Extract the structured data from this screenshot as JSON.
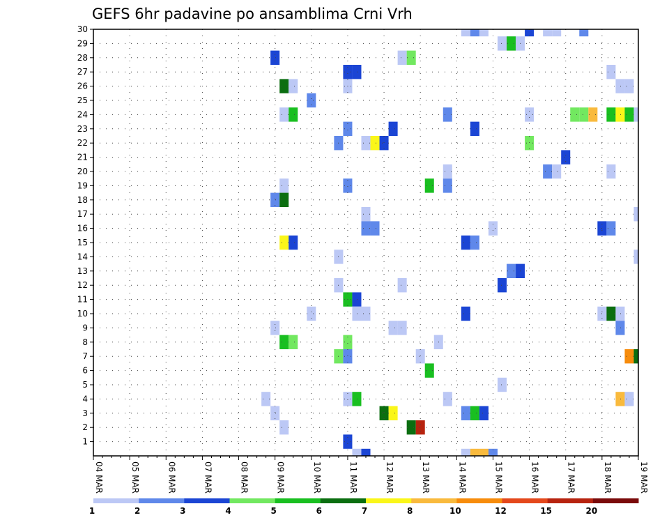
{
  "chart_data": {
    "type": "heatmap",
    "title": "GEFS 6hr padavine po ansamblima Crni Vrh",
    "xlabel": "",
    "ylabel": "",
    "x_tick_labels": [
      "04 MAR",
      "05 MAR",
      "06 MAR",
      "07 MAR",
      "08 MAR",
      "09 MAR",
      "10 MAR",
      "11 MAR",
      "12 MAR",
      "13 MAR",
      "14 MAR",
      "15 MAR",
      "16 MAR",
      "17 MAR",
      "18 MAR",
      "19 MAR"
    ],
    "y_tick_labels": [
      "1",
      "2",
      "3",
      "4",
      "5",
      "6",
      "7",
      "8",
      "9",
      "10",
      "11",
      "12",
      "13",
      "14",
      "15",
      "16",
      "17",
      "18",
      "19",
      "20",
      "21",
      "22",
      "23",
      "24",
      "25",
      "26",
      "27",
      "28",
      "29",
      "30"
    ],
    "x_range_steps": [
      0,
      60
    ],
    "steps_per_day": 4,
    "y_range": [
      0,
      30
    ],
    "grid": true,
    "legend_position": "bottom",
    "legend": {
      "boundaries": [
        "1",
        "2",
        "3",
        "4",
        "5",
        "6",
        "7",
        "8",
        "10",
        "12",
        "15",
        "20"
      ],
      "colors": [
        "#bcc8f5",
        "#5f88ea",
        "#1b45d4",
        "#72e860",
        "#19bf20",
        "#0b6e10",
        "#faf619",
        "#f9ba3d",
        "#f78c0c",
        "#e4481c",
        "#b7230f",
        "#7a0a0a"
      ]
    },
    "cells": [
      {
        "m": 30,
        "s": [
          [
            41,
            0
          ],
          [
            42,
            1
          ],
          [
            43,
            0
          ],
          [
            48,
            2
          ],
          [
            50,
            0
          ],
          [
            51,
            0
          ],
          [
            54,
            1
          ]
        ]
      },
      {
        "m": 29,
        "s": [
          [
            45,
            0
          ],
          [
            46,
            4
          ],
          [
            47,
            0
          ]
        ]
      },
      {
        "m": 28,
        "s": [
          [
            20,
            2
          ],
          [
            34,
            0
          ],
          [
            35,
            3
          ]
        ]
      },
      {
        "m": 27,
        "s": [
          [
            28,
            2
          ],
          [
            29,
            2
          ],
          [
            57,
            0
          ]
        ]
      },
      {
        "m": 26,
        "s": [
          [
            21,
            5
          ],
          [
            22,
            0
          ],
          [
            28,
            0
          ],
          [
            58,
            0
          ],
          [
            59,
            0
          ]
        ]
      },
      {
        "m": 25,
        "s": [
          [
            24,
            1
          ]
        ]
      },
      {
        "m": 24,
        "s": [
          [
            21,
            0
          ],
          [
            22,
            4
          ],
          [
            39,
            1
          ],
          [
            48,
            0
          ],
          [
            53,
            3
          ],
          [
            54,
            3
          ],
          [
            55,
            7
          ],
          [
            57,
            4
          ],
          [
            58,
            6
          ],
          [
            59,
            4
          ],
          [
            60,
            0
          ]
        ]
      },
      {
        "m": 23,
        "s": [
          [
            28,
            1
          ],
          [
            33,
            2
          ],
          [
            42,
            2
          ]
        ]
      },
      {
        "m": 22,
        "s": [
          [
            27,
            1
          ],
          [
            30,
            0
          ],
          [
            31,
            6
          ],
          [
            32,
            2
          ],
          [
            48,
            3
          ]
        ]
      },
      {
        "m": 21,
        "s": [
          [
            52,
            2
          ]
        ]
      },
      {
        "m": 20,
        "s": [
          [
            39,
            0
          ],
          [
            50,
            1
          ],
          [
            51,
            0
          ],
          [
            57,
            0
          ]
        ]
      },
      {
        "m": 19,
        "s": [
          [
            21,
            0
          ],
          [
            28,
            1
          ],
          [
            37,
            4
          ],
          [
            39,
            1
          ]
        ]
      },
      {
        "m": 18,
        "s": [
          [
            20,
            1
          ],
          [
            21,
            5
          ]
        ]
      },
      {
        "m": 17,
        "s": [
          [
            30,
            0
          ],
          [
            60,
            0
          ]
        ]
      },
      {
        "m": 16,
        "s": [
          [
            30,
            1
          ],
          [
            31,
            1
          ],
          [
            44,
            0
          ],
          [
            56,
            2
          ],
          [
            57,
            1
          ]
        ]
      },
      {
        "m": 15,
        "s": [
          [
            21,
            6
          ],
          [
            22,
            2
          ],
          [
            41,
            2
          ],
          [
            42,
            1
          ]
        ]
      },
      {
        "m": 14,
        "s": [
          [
            27,
            0
          ],
          [
            60,
            0
          ]
        ]
      },
      {
        "m": 13,
        "s": [
          [
            46,
            1
          ],
          [
            47,
            2
          ]
        ]
      },
      {
        "m": 12,
        "s": [
          [
            27,
            0
          ],
          [
            34,
            0
          ],
          [
            45,
            2
          ]
        ]
      },
      {
        "m": 11,
        "s": [
          [
            28,
            4
          ],
          [
            29,
            2
          ]
        ]
      },
      {
        "m": 10,
        "s": [
          [
            24,
            0
          ],
          [
            29,
            0
          ],
          [
            30,
            0
          ],
          [
            41,
            2
          ],
          [
            56,
            0
          ],
          [
            57,
            5
          ],
          [
            58,
            0
          ]
        ]
      },
      {
        "m": 9,
        "s": [
          [
            20,
            0
          ],
          [
            33,
            0
          ],
          [
            34,
            0
          ],
          [
            58,
            1
          ]
        ]
      },
      {
        "m": 8,
        "s": [
          [
            21,
            4
          ],
          [
            22,
            3
          ],
          [
            28,
            3
          ],
          [
            38,
            0
          ]
        ]
      },
      {
        "m": 7,
        "s": [
          [
            27,
            3
          ],
          [
            28,
            1
          ],
          [
            36,
            0
          ],
          [
            59,
            8
          ],
          [
            60,
            5
          ]
        ]
      },
      {
        "m": 6,
        "s": [
          [
            37,
            4
          ]
        ]
      },
      {
        "m": 5,
        "s": [
          [
            45,
            0
          ]
        ]
      },
      {
        "m": 4,
        "s": [
          [
            19,
            0
          ],
          [
            28,
            0
          ],
          [
            29,
            4
          ],
          [
            39,
            0
          ],
          [
            58,
            7
          ],
          [
            59,
            0
          ]
        ]
      },
      {
        "m": 3,
        "s": [
          [
            20,
            0
          ],
          [
            32,
            5
          ],
          [
            33,
            6
          ],
          [
            41,
            1
          ],
          [
            42,
            4
          ],
          [
            43,
            2
          ]
        ]
      },
      {
        "m": 2,
        "s": [
          [
            21,
            0
          ],
          [
            35,
            5
          ],
          [
            36,
            10
          ]
        ]
      },
      {
        "m": 1,
        "s": [
          [
            28,
            2
          ]
        ]
      },
      {
        "m": 0,
        "s": [
          [
            29,
            0
          ],
          [
            30,
            2
          ],
          [
            41,
            0
          ],
          [
            42,
            7
          ],
          [
            43,
            7
          ],
          [
            44,
            1
          ]
        ]
      }
    ]
  }
}
